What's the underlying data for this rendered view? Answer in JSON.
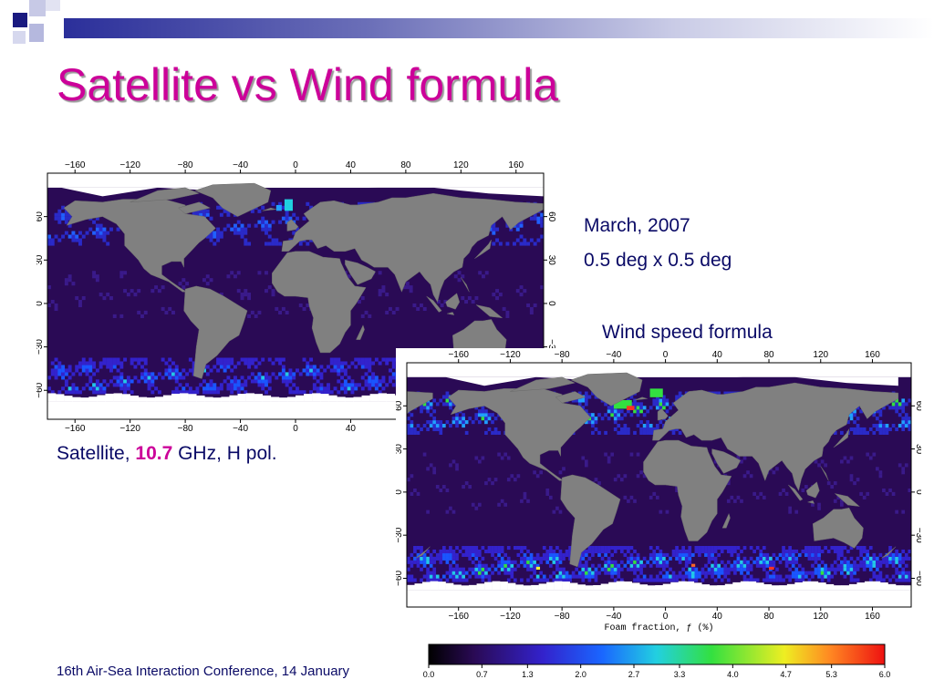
{
  "slide": {
    "title": "Satellite vs Wind formula",
    "date_text": "March, 2007",
    "grid_text": "0.5 deg x 0.5 deg",
    "wind_label": "Wind speed formula",
    "satellite_label": {
      "prefix": "Satellite, ",
      "frequency": "10.7",
      "suffix": " GHz, H pol."
    },
    "footer": "16th Air-Sea Interaction Conference, 14 January",
    "colors": {
      "title": "#cc0099",
      "text": "#0a0a66",
      "land": "#808080",
      "ocean": "#2a0a55",
      "ice": "#ffffff"
    }
  },
  "maps": {
    "lon_ticks": [
      "−160",
      "−120",
      "−80",
      "−40",
      "0",
      "40",
      "80",
      "120",
      "160"
    ],
    "lat_ticks": [
      "60",
      "30",
      "0",
      "−30",
      "−60"
    ],
    "colorbar": {
      "label": "Foam fraction, ƒ (%)",
      "ticks": [
        "0.0",
        "0.7",
        "1.3",
        "2.0",
        "2.7",
        "3.3",
        "4.0",
        "4.7",
        "5.3",
        "6.0"
      ]
    }
  }
}
